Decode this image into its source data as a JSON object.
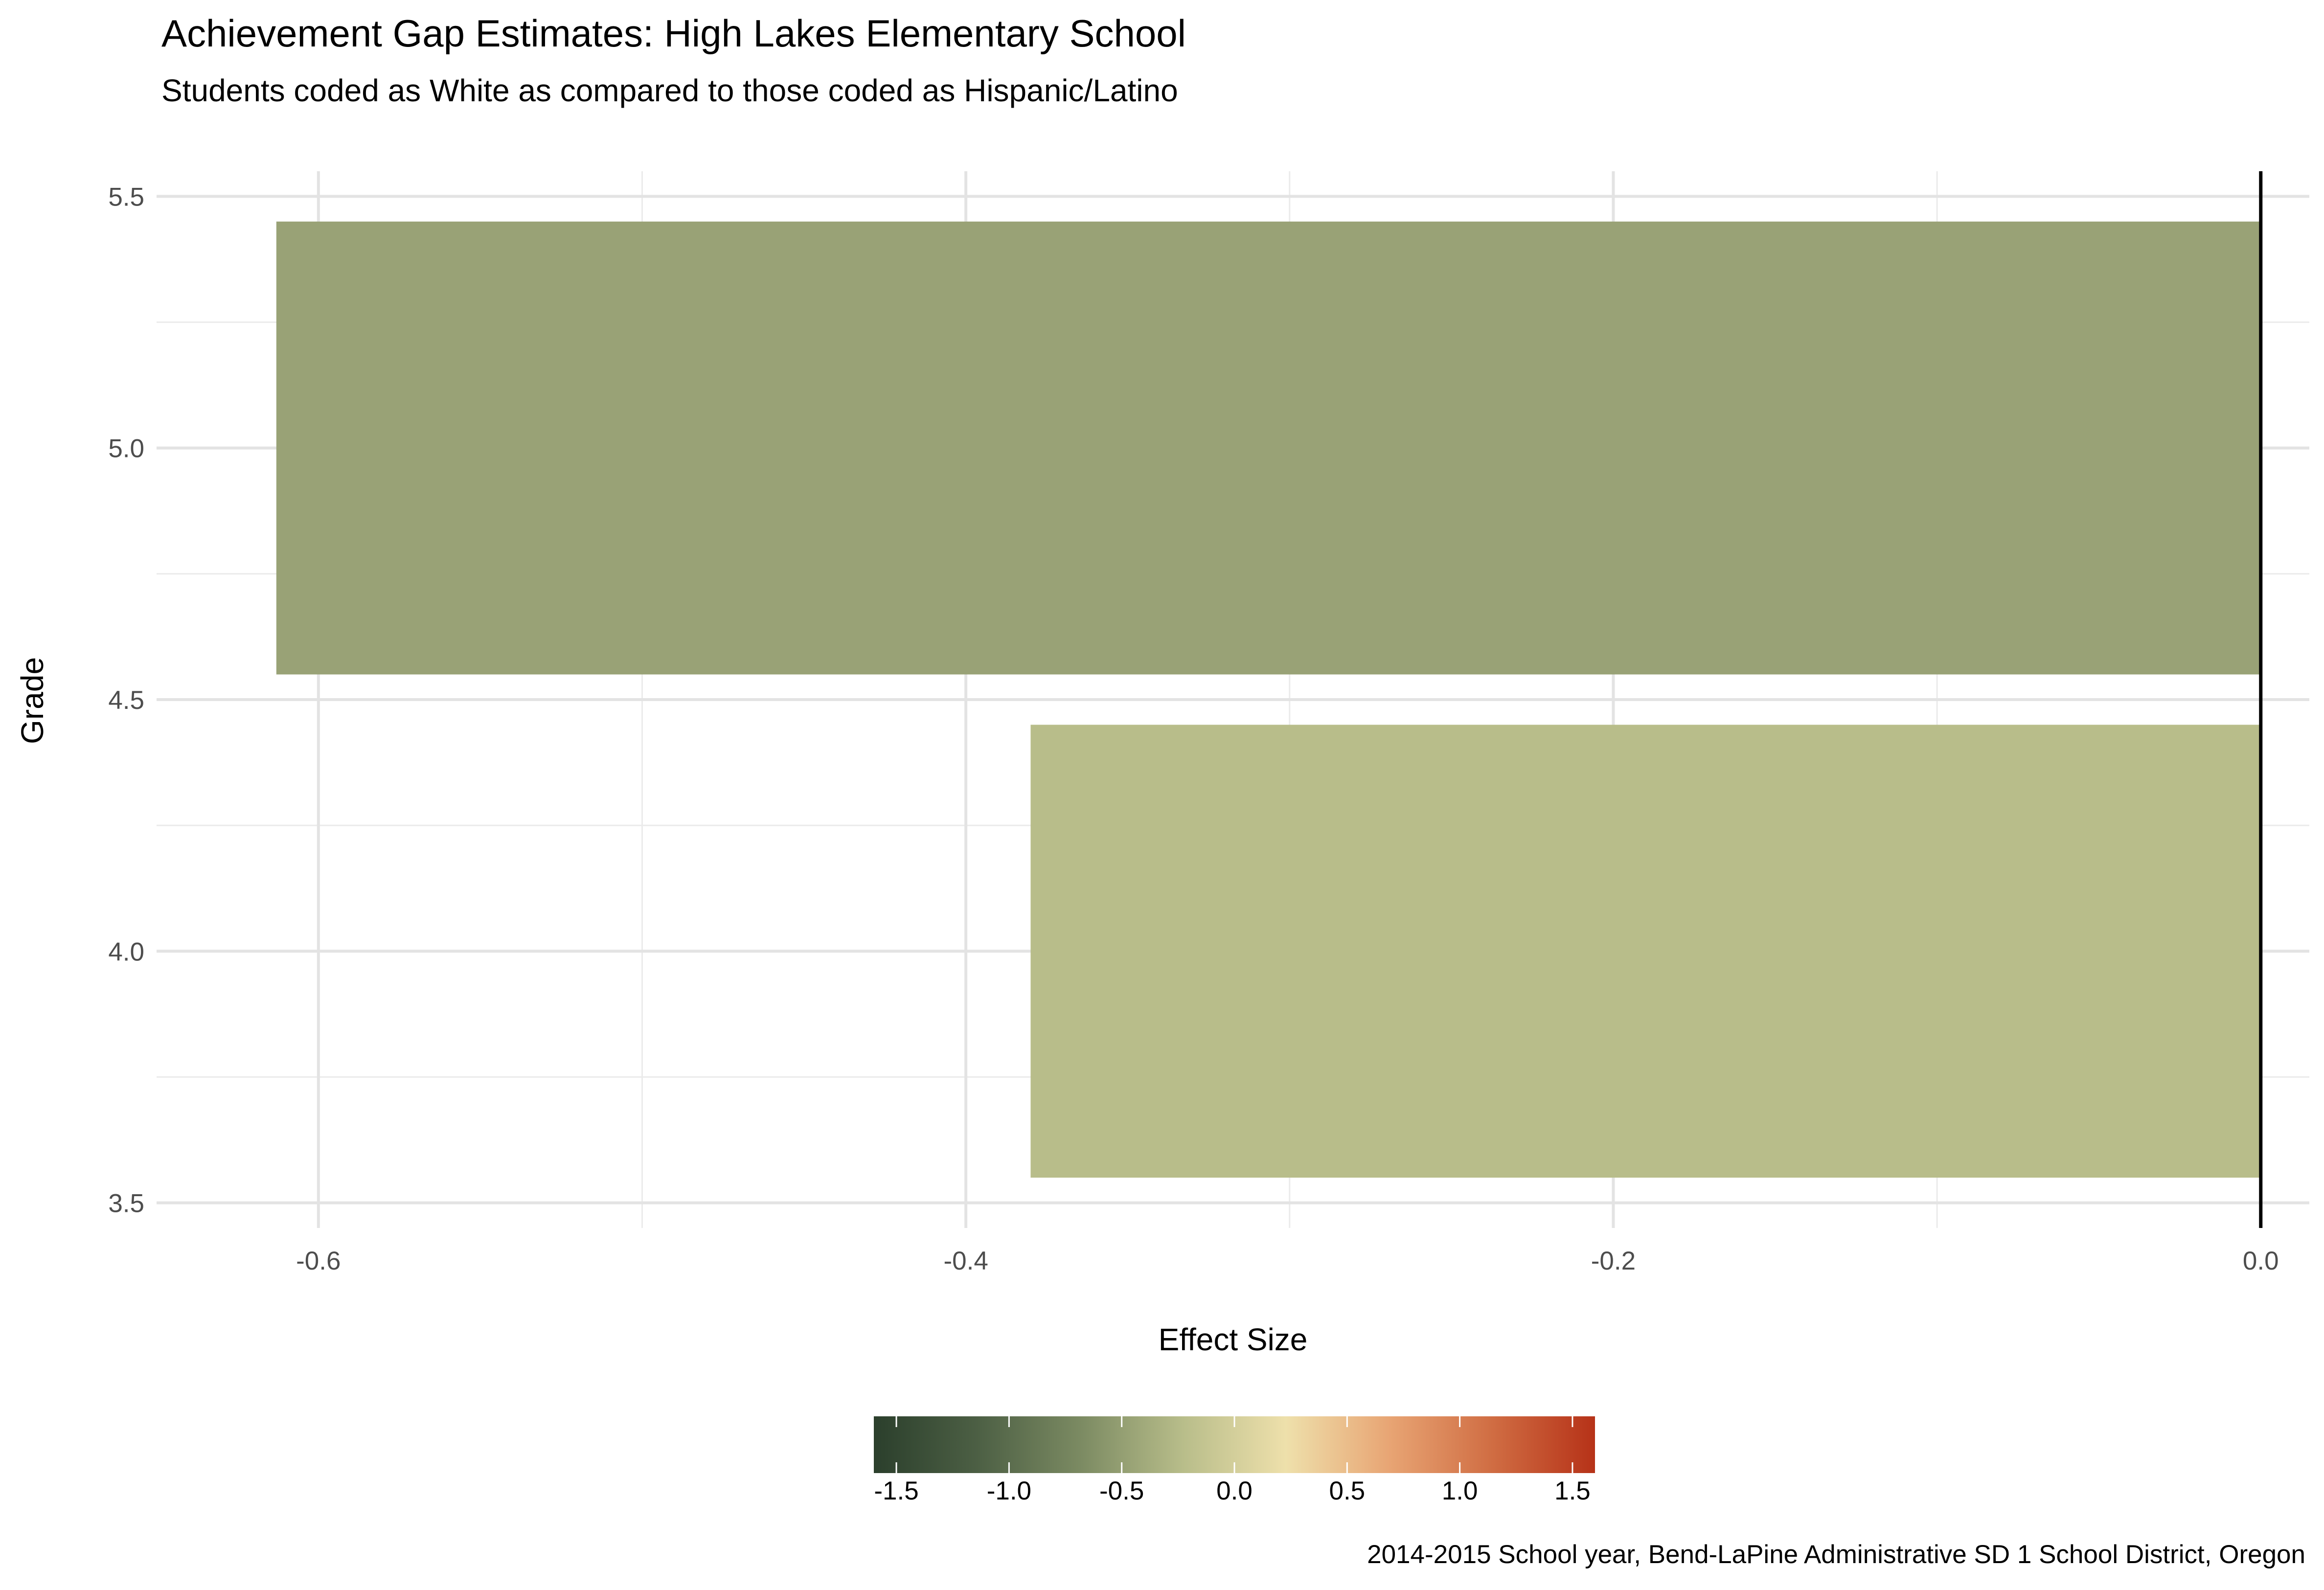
{
  "chart_data": {
    "type": "bar",
    "orientation": "horizontal",
    "title": "Achievement Gap Estimates: High Lakes Elementary School",
    "subtitle": "Students coded as White as compared to those coded as Hispanic/Latino",
    "caption": "2014-2015 School year, Bend-LaPine Administrative SD 1 School District, Oregon",
    "xlabel": "Effect Size",
    "ylabel": "Grade",
    "xlim": [
      -0.65,
      0.015
    ],
    "ylim": [
      3.45,
      5.55
    ],
    "x_ticks": [
      -0.6,
      -0.4,
      -0.2,
      0.0
    ],
    "x_tick_labels": [
      "-0.6",
      "-0.4",
      "-0.2",
      "0.0"
    ],
    "y_ticks": [
      3.5,
      4.0,
      4.5,
      5.0,
      5.5
    ],
    "y_tick_labels": [
      "3.5",
      "4.0",
      "4.5",
      "5.0",
      "5.5"
    ],
    "grid": true,
    "categories": [
      4,
      5
    ],
    "values": [
      -0.38,
      -0.613
    ],
    "bar_width": 0.9,
    "bar_colors": [
      "#b8bd8a",
      "#99a276"
    ],
    "reference_line_x": 0,
    "legend": {
      "placement": "bottom",
      "type": "colorbar",
      "ticks": [
        -1.5,
        -1.0,
        -0.5,
        0.0,
        0.5,
        1.0,
        1.5
      ],
      "tick_labels": [
        "-1.5",
        "-1.0",
        "-0.5",
        "0.0",
        "0.5",
        "1.0",
        "1.5"
      ],
      "range": [
        -1.6,
        1.6
      ],
      "colors": [
        "#2b3f2c",
        "#4c5f44",
        "#7b8a62",
        "#b8bd8a",
        "#eee0ab",
        "#e8a574",
        "#d06d43",
        "#b63218"
      ]
    }
  }
}
